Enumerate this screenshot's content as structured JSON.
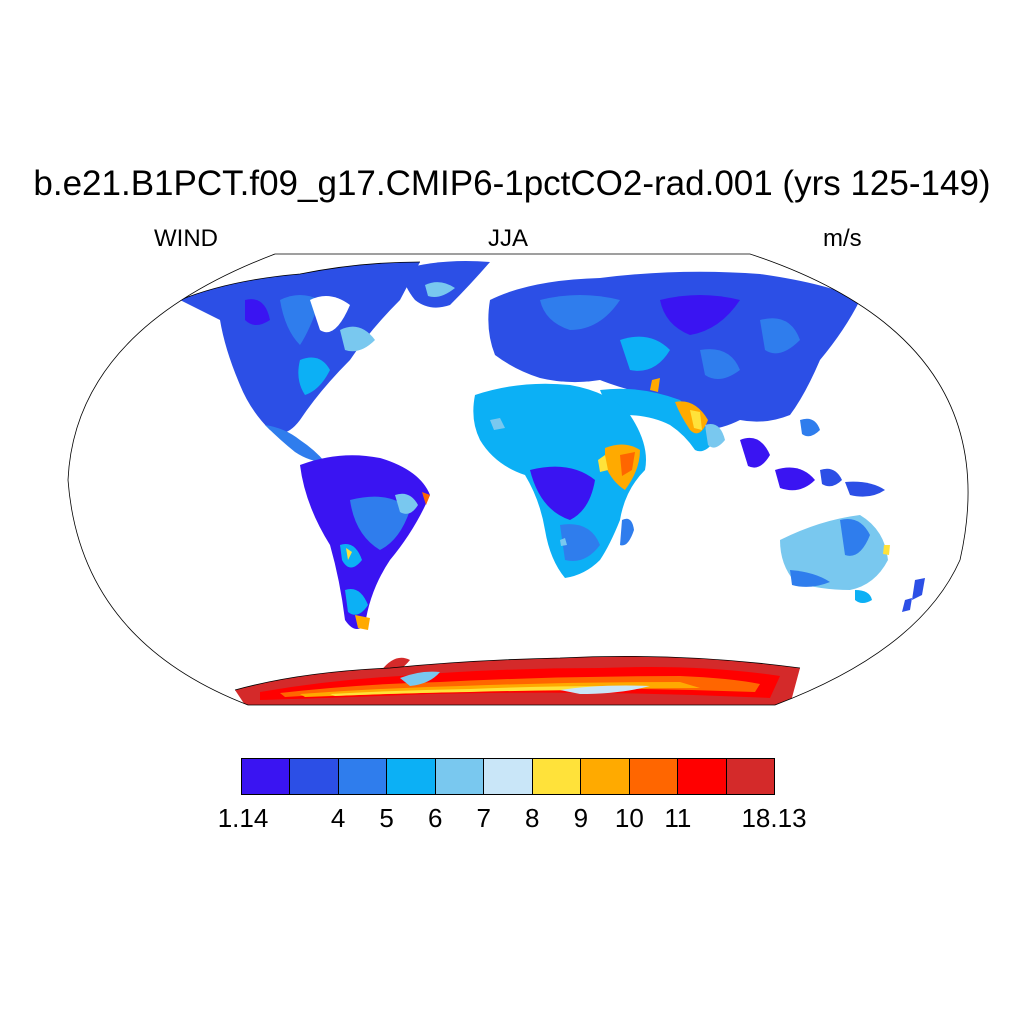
{
  "figure": {
    "title": "b.e21.B1PCT.f09_g17.CMIP6-1pctCO2-rad.001 (yrs 125-149)",
    "left_string": "WIND",
    "center_string": "JJA",
    "right_string": "m/s"
  },
  "map": {
    "projection": "robinson",
    "variable": "WIND",
    "season": "JJA",
    "units": "m/s"
  },
  "colorbar": {
    "colors": [
      "#3a14f2",
      "#2c4fe6",
      "#2f7ded",
      "#0cb0f5",
      "#79c8ef",
      "#c9e6f8",
      "#ffe23a",
      "#ffaa00",
      "#ff6600",
      "#ff0000",
      "#d42a2a"
    ],
    "labels": [
      "1.14",
      "4",
      "5",
      "6",
      "7",
      "8",
      "9",
      "10",
      "11",
      "18.13"
    ]
  }
}
